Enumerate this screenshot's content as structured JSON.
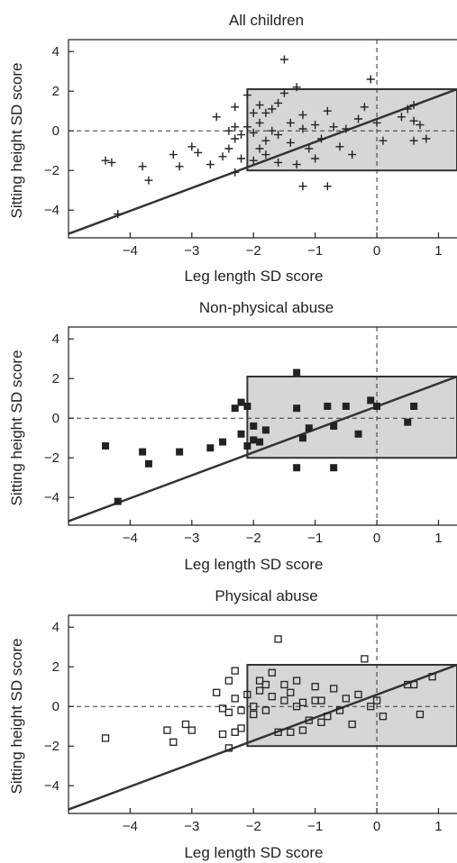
{
  "chart_data": [
    {
      "type": "scatter",
      "title": "All children",
      "xlabel": "Leg length SD score",
      "ylabel": "Sitting height SD score",
      "xlim": [
        -5,
        1.3
      ],
      "ylim": [
        -5.4,
        4.6
      ],
      "xticks": [
        -4,
        -3,
        -2,
        -1,
        0,
        1
      ],
      "yticks": [
        -4,
        -2,
        0,
        2,
        4
      ],
      "tick_labels_x": [
        "−4",
        "−3",
        "−2",
        "−1",
        "0",
        "1"
      ],
      "tick_labels_y": [
        "−4",
        "−2",
        "0",
        "2",
        "4"
      ],
      "marker": "plus",
      "shaded_region": {
        "x": [
          -2.1,
          1.3
        ],
        "y": [
          -2,
          2.1
        ]
      },
      "reference_line": {
        "x1": -5,
        "y1": -5.2,
        "x2": 1.3,
        "y2": 2.1
      },
      "points": [
        [
          -4.4,
          -1.5
        ],
        [
          -4.3,
          -1.6
        ],
        [
          -4.2,
          -4.2
        ],
        [
          -3.8,
          -1.8
        ],
        [
          -3.7,
          -2.5
        ],
        [
          -3.3,
          -1.2
        ],
        [
          -3.2,
          -1.8
        ],
        [
          -3.0,
          -0.8
        ],
        [
          -2.9,
          -1.1
        ],
        [
          -2.7,
          -1.7
        ],
        [
          -2.6,
          0.7
        ],
        [
          -2.5,
          -1.3
        ],
        [
          -2.4,
          -0.9
        ],
        [
          -2.4,
          0.0
        ],
        [
          -2.3,
          0.2
        ],
        [
          -2.3,
          -0.4
        ],
        [
          -2.3,
          -2.1
        ],
        [
          -2.3,
          1.2
        ],
        [
          -2.2,
          -1.4
        ],
        [
          -2.2,
          -0.2
        ],
        [
          -2.1,
          0.2
        ],
        [
          -2.1,
          1.8
        ],
        [
          -2.0,
          0.9
        ],
        [
          -2.0,
          -0.1
        ],
        [
          -2.0,
          -1.5
        ],
        [
          -1.9,
          0.4
        ],
        [
          -1.9,
          1.3
        ],
        [
          -1.9,
          -0.9
        ],
        [
          -1.8,
          -0.5
        ],
        [
          -1.8,
          0.9
        ],
        [
          -1.8,
          -1.2
        ],
        [
          -1.7,
          0.0
        ],
        [
          -1.7,
          1.1
        ],
        [
          -1.6,
          1.4
        ],
        [
          -1.6,
          -0.2
        ],
        [
          -1.6,
          -1.6
        ],
        [
          -1.5,
          3.6
        ],
        [
          -1.5,
          1.9
        ],
        [
          -1.4,
          0.4
        ],
        [
          -1.4,
          -0.6
        ],
        [
          -1.3,
          2.2
        ],
        [
          -1.3,
          -1.7
        ],
        [
          -1.2,
          -2.8
        ],
        [
          -1.2,
          0.8
        ],
        [
          -1.2,
          0.1
        ],
        [
          -1.1,
          -0.9
        ],
        [
          -1.0,
          0.3
        ],
        [
          -1.0,
          -1.4
        ],
        [
          -0.9,
          -0.4
        ],
        [
          -0.8,
          -2.8
        ],
        [
          -0.8,
          1.0
        ],
        [
          -0.7,
          0.2
        ],
        [
          -0.6,
          -0.8
        ],
        [
          -0.5,
          0.1
        ],
        [
          -0.4,
          -1.2
        ],
        [
          -0.3,
          0.6
        ],
        [
          -0.2,
          1.2
        ],
        [
          -0.1,
          2.6
        ],
        [
          0.0,
          0.4
        ],
        [
          0.1,
          -0.5
        ],
        [
          0.4,
          0.7
        ],
        [
          0.5,
          1.1
        ],
        [
          0.6,
          0.5
        ],
        [
          0.6,
          -0.5
        ],
        [
          0.7,
          0.3
        ],
        [
          0.8,
          -0.4
        ],
        [
          0.6,
          1.3
        ]
      ]
    },
    {
      "type": "scatter",
      "title": "Non-physical abuse",
      "xlabel": "Leg length SD score",
      "ylabel": "Sitting height SD score",
      "xlim": [
        -5,
        1.3
      ],
      "ylim": [
        -5.4,
        4.6
      ],
      "xticks": [
        -4,
        -3,
        -2,
        -1,
        0,
        1
      ],
      "yticks": [
        -4,
        -2,
        0,
        2,
        4
      ],
      "tick_labels_x": [
        "−4",
        "−3",
        "−2",
        "−1",
        "0",
        "1"
      ],
      "tick_labels_y": [
        "−4",
        "−2",
        "0",
        "2",
        "4"
      ],
      "marker": "filled-square",
      "shaded_region": {
        "x": [
          -2.1,
          1.3
        ],
        "y": [
          -2,
          2.1
        ]
      },
      "reference_line": {
        "x1": -5,
        "y1": -5.2,
        "x2": 1.3,
        "y2": 2.1
      },
      "points": [
        [
          -4.4,
          -1.4
        ],
        [
          -4.2,
          -4.2
        ],
        [
          -3.8,
          -1.7
        ],
        [
          -3.7,
          -2.3
        ],
        [
          -3.2,
          -1.7
        ],
        [
          -2.7,
          -1.5
        ],
        [
          -2.5,
          -1.2
        ],
        [
          -2.3,
          0.5
        ],
        [
          -2.2,
          0.8
        ],
        [
          -2.2,
          -0.8
        ],
        [
          -2.1,
          -1.4
        ],
        [
          -2.1,
          0.6
        ],
        [
          -2.0,
          -0.4
        ],
        [
          -2.0,
          -1.1
        ],
        [
          -1.9,
          -1.2
        ],
        [
          -1.8,
          -0.6
        ],
        [
          -1.3,
          2.3
        ],
        [
          -1.3,
          0.5
        ],
        [
          -1.3,
          -2.5
        ],
        [
          -1.2,
          -1.0
        ],
        [
          -1.1,
          -0.5
        ],
        [
          -0.8,
          0.6
        ],
        [
          -0.7,
          -0.4
        ],
        [
          -0.7,
          -2.5
        ],
        [
          -0.5,
          0.6
        ],
        [
          -0.3,
          -0.8
        ],
        [
          -0.1,
          0.9
        ],
        [
          0.0,
          0.6
        ],
        [
          0.5,
          -0.2
        ],
        [
          0.6,
          0.6
        ]
      ]
    },
    {
      "type": "scatter",
      "title": "Physical abuse",
      "xlabel": "Leg length SD score",
      "ylabel": "Sitting height SD score",
      "xlim": [
        -5,
        1.3
      ],
      "ylim": [
        -5.4,
        4.6
      ],
      "xticks": [
        -4,
        -3,
        -2,
        -1,
        0,
        1
      ],
      "yticks": [
        -4,
        -2,
        0,
        2,
        4
      ],
      "tick_labels_x": [
        "−4",
        "−3",
        "−2",
        "−1",
        "0",
        "1"
      ],
      "tick_labels_y": [
        "−4",
        "−2",
        "0",
        "2",
        "4"
      ],
      "marker": "open-square",
      "shaded_region": {
        "x": [
          -2.1,
          1.3
        ],
        "y": [
          -2,
          2.1
        ]
      },
      "reference_line": {
        "x1": -5,
        "y1": -5.2,
        "x2": 1.3,
        "y2": 2.1
      },
      "points": [
        [
          -4.4,
          -1.6
        ],
        [
          -3.4,
          -1.2
        ],
        [
          -3.3,
          -1.8
        ],
        [
          -3.1,
          -0.9
        ],
        [
          -3.0,
          -1.2
        ],
        [
          -2.6,
          0.7
        ],
        [
          -2.5,
          -0.1
        ],
        [
          -2.5,
          -1.4
        ],
        [
          -2.4,
          1.3
        ],
        [
          -2.4,
          -0.3
        ],
        [
          -2.4,
          -2.1
        ],
        [
          -2.3,
          0.4
        ],
        [
          -2.3,
          1.8
        ],
        [
          -2.3,
          -1.3
        ],
        [
          -2.2,
          -0.2
        ],
        [
          -2.2,
          -1.1
        ],
        [
          -2.1,
          0.6
        ],
        [
          -2.0,
          0.0
        ],
        [
          -2.0,
          -0.4
        ],
        [
          -1.9,
          0.8
        ],
        [
          -1.9,
          1.3
        ],
        [
          -1.8,
          1.1
        ],
        [
          -1.8,
          -0.2
        ],
        [
          -1.7,
          0.5
        ],
        [
          -1.7,
          1.7
        ],
        [
          -1.6,
          -1.3
        ],
        [
          -1.6,
          3.4
        ],
        [
          -1.5,
          0.3
        ],
        [
          -1.5,
          1.1
        ],
        [
          -1.4,
          -1.3
        ],
        [
          -1.4,
          0.7
        ],
        [
          -1.3,
          0.0
        ],
        [
          -1.3,
          1.3
        ],
        [
          -1.2,
          -1.2
        ],
        [
          -1.2,
          0.2
        ],
        [
          -1.1,
          -0.7
        ],
        [
          -1.0,
          0.3
        ],
        [
          -1.0,
          1.0
        ],
        [
          -0.9,
          -0.8
        ],
        [
          -0.9,
          0.3
        ],
        [
          -0.8,
          -0.5
        ],
        [
          -0.7,
          0.9
        ],
        [
          -0.6,
          -0.2
        ],
        [
          -0.5,
          0.4
        ],
        [
          -0.4,
          -0.9
        ],
        [
          -0.3,
          0.6
        ],
        [
          -0.2,
          2.4
        ],
        [
          -0.1,
          0.0
        ],
        [
          0.0,
          0.3
        ],
        [
          0.1,
          -0.5
        ],
        [
          0.5,
          1.1
        ],
        [
          0.6,
          1.1
        ],
        [
          0.7,
          -0.4
        ],
        [
          0.9,
          1.5
        ]
      ]
    }
  ]
}
